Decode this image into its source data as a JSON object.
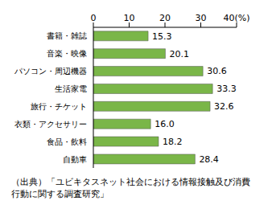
{
  "chart_data": {
    "type": "bar",
    "orientation": "horizontal",
    "categories": [
      "書籍・雑誌",
      "音楽・映像",
      "パソコン・周辺機器",
      "生活家電",
      "旅行・チケット",
      "衣類・アクセサリー",
      "食品・飲料",
      "自動車"
    ],
    "values": [
      15.3,
      20.1,
      30.6,
      33.3,
      32.6,
      16.0,
      18.2,
      28.4
    ],
    "value_labels": [
      "15.3",
      "20.1",
      "30.6",
      "33.3",
      "32.6",
      "16.0",
      "18.2",
      "28.4"
    ],
    "data_labels": true,
    "color": "#7ab648",
    "xlim": [
      0,
      40
    ],
    "xticks": [
      0,
      10,
      20,
      30,
      {
        "value": 40,
        "label": "40(%)"
      }
    ],
    "grid": false,
    "annotations": [
      "（出典）「ユビキタスネット社会における情報接触及び消費行動に関する調査研究」"
    ]
  }
}
